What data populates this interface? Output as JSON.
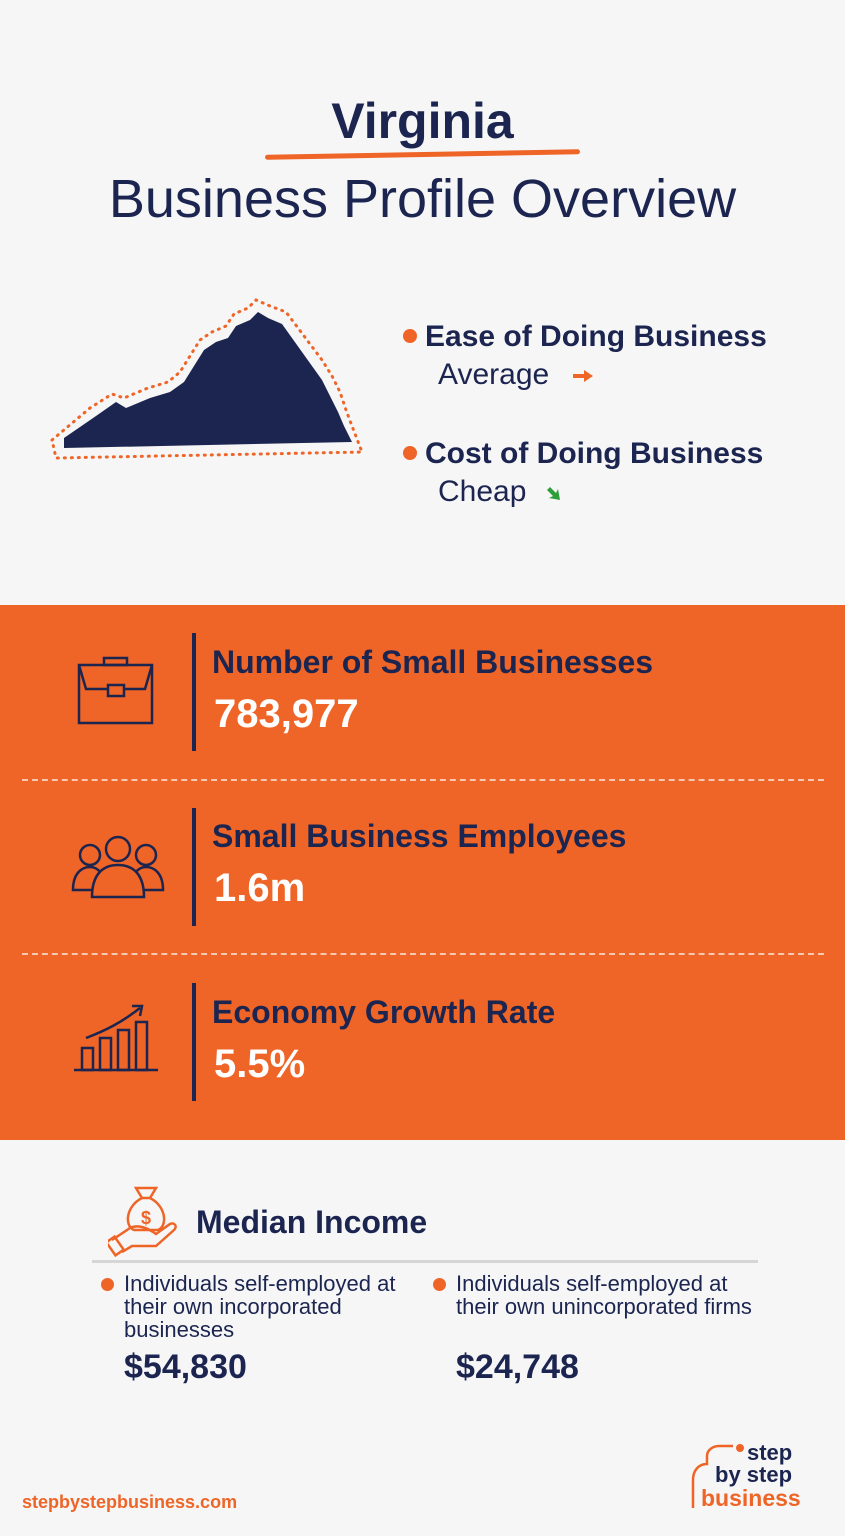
{
  "header": {
    "state": "Virginia",
    "subtitle": "Business Profile Overview"
  },
  "ratings": [
    {
      "label": "Ease of Doing Business",
      "value": "Average",
      "icon": "arrow-right-icon",
      "color": "#ee6527"
    },
    {
      "label": "Cost of Doing Business",
      "value": "Cheap",
      "icon": "arrow-down-right-icon",
      "color": "#2e9e3a"
    }
  ],
  "stats": [
    {
      "label": "Number of Small Businesses",
      "value": "783,977",
      "icon": "briefcase-icon"
    },
    {
      "label": "Small Business Employees",
      "value": "1.6m",
      "icon": "people-icon"
    },
    {
      "label": "Economy Growth Rate",
      "value": "5.5%",
      "icon": "growth-chart-icon"
    }
  ],
  "median_income": {
    "title": "Median Income",
    "icon": "money-bag-hand-icon",
    "items": [
      {
        "desc": "Individuals self-employed at their own incorporated businesses",
        "amount": "$54,830"
      },
      {
        "desc": "Individuals self-employed at their own unincorporated firms",
        "amount": "$24,748"
      }
    ]
  },
  "footer": {
    "site": "stepbystepbusiness.com",
    "logo": "step by step business"
  },
  "colors": {
    "navy": "#1b2550",
    "orange": "#ee6527",
    "background": "#f6f6f6"
  }
}
